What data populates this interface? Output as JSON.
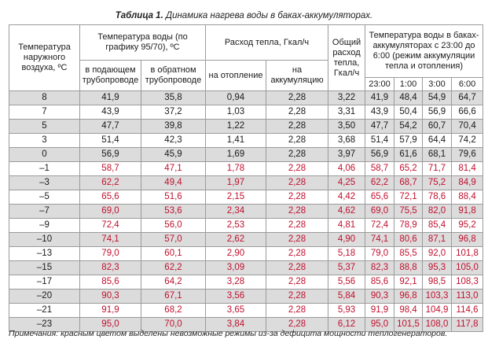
{
  "title": {
    "bold": "Таблица 1.",
    "rest": " Динамика нагрева воды в баках-аккумуляторах."
  },
  "colors": {
    "impossible_regime": "#c0102e",
    "row_shade": "#dcdcdc",
    "border": "#9b9b9b"
  },
  "headers": {
    "outdoor_temp": "Температура наружного воздуха, ºС",
    "water_temp": "Температура воды (по графику 95/70), ºС",
    "supply": "в подающем трубопроводе",
    "return": "в обратном трубопроводе",
    "heat_flow": "Расход тепла, Гкал/ч",
    "heating": "на отопление",
    "accumulation": "на аккумуляцию",
    "total": "Общий расход тепла, Гкал/ч",
    "tank_temp": "Температура воды в баках-аккумуляторах с 23:00 до 6:00 (режим аккумуляции тепла и отопления)",
    "times": [
      "23:00",
      "1:00",
      "3:00",
      "6:00"
    ]
  },
  "rows": [
    {
      "t": "8",
      "supply": "41,9",
      "return": "35,8",
      "heating": "0,94",
      "accum": "2,28",
      "total": "3,22",
      "tanks": [
        "41,9",
        "48,4",
        "54,9",
        "64,7"
      ],
      "bad": false
    },
    {
      "t": "7",
      "supply": "43,9",
      "return": "37,2",
      "heating": "1,03",
      "accum": "2,28",
      "total": "3,31",
      "tanks": [
        "43,9",
        "50,4",
        "56,9",
        "66,6"
      ],
      "bad": false
    },
    {
      "t": "5",
      "supply": "47,7",
      "return": "39,8",
      "heating": "1,22",
      "accum": "2,28",
      "total": "3,50",
      "tanks": [
        "47,7",
        "54,2",
        "60,7",
        "70,4"
      ],
      "bad": false
    },
    {
      "t": "3",
      "supply": "51,4",
      "return": "42,3",
      "heating": "1,41",
      "accum": "2,28",
      "total": "3,68",
      "tanks": [
        "51,4",
        "57,9",
        "64,4",
        "74,2"
      ],
      "bad": false
    },
    {
      "t": "0",
      "supply": "56,9",
      "return": "45,9",
      "heating": "1,69",
      "accum": "2,28",
      "total": "3,97",
      "tanks": [
        "56,9",
        "61,6",
        "68,1",
        "79,6"
      ],
      "bad": false
    },
    {
      "t": "–1",
      "supply": "58,7",
      "return": "47,1",
      "heating": "1,78",
      "accum": "2,28",
      "total": "4,06",
      "tanks": [
        "58,7",
        "65,2",
        "71,7",
        "81,4"
      ],
      "bad": true
    },
    {
      "t": "–3",
      "supply": "62,2",
      "return": "49,4",
      "heating": "1,97",
      "accum": "2,28",
      "total": "4,25",
      "tanks": [
        "62,2",
        "68,7",
        "75,2",
        "84,9"
      ],
      "bad": true
    },
    {
      "t": "–5",
      "supply": "65,6",
      "return": "51,6",
      "heating": "2,15",
      "accum": "2,28",
      "total": "4,42",
      "tanks": [
        "65,6",
        "72,1",
        "78,6",
        "88,4"
      ],
      "bad": true
    },
    {
      "t": "–7",
      "supply": "69,0",
      "return": "53,6",
      "heating": "2,34",
      "accum": "2,28",
      "total": "4,62",
      "tanks": [
        "69,0",
        "75,5",
        "82,0",
        "91,8"
      ],
      "bad": true
    },
    {
      "t": "–9",
      "supply": "72,4",
      "return": "56,0",
      "heating": "2,53",
      "accum": "2,28",
      "total": "4,81",
      "tanks": [
        "72,4",
        "78,9",
        "85,4",
        "95,2"
      ],
      "bad": true
    },
    {
      "t": "–10",
      "supply": "74,1",
      "return": "57,0",
      "heating": "2,62",
      "accum": "2,28",
      "total": "4,90",
      "tanks": [
        "74,1",
        "80,6",
        "87,1",
        "96,8"
      ],
      "bad": true
    },
    {
      "t": "–13",
      "supply": "79,0",
      "return": "60,1",
      "heating": "2,90",
      "accum": "2,28",
      "total": "5,18",
      "tanks": [
        "79,0",
        "85,5",
        "92,0",
        "101,8"
      ],
      "bad": true
    },
    {
      "t": "–15",
      "supply": "82,3",
      "return": "62,2",
      "heating": "3,09",
      "accum": "2,28",
      "total": "5,37",
      "tanks": [
        "82,3",
        "88,8",
        "95,3",
        "105,0"
      ],
      "bad": true
    },
    {
      "t": "–17",
      "supply": "85,6",
      "return": "64,2",
      "heating": "3,28",
      "accum": "2,28",
      "total": "5,56",
      "tanks": [
        "85,6",
        "92,1",
        "98,5",
        "108,3"
      ],
      "bad": true
    },
    {
      "t": "–20",
      "supply": "90,3",
      "return": "67,1",
      "heating": "3,56",
      "accum": "2,28",
      "total": "5,84",
      "tanks": [
        "90,3",
        "96,8",
        "103,3",
        "113,0"
      ],
      "bad": true
    },
    {
      "t": "–21",
      "supply": "91,9",
      "return": "68,2",
      "heating": "3,65",
      "accum": "2,28",
      "total": "5,93",
      "tanks": [
        "91,9",
        "98,4",
        "104,9",
        "114,6"
      ],
      "bad": true
    },
    {
      "t": "–23",
      "supply": "95,0",
      "return": "70,0",
      "heating": "3,84",
      "accum": "2,28",
      "total": "6,12",
      "tanks": [
        "95,0",
        "101,5",
        "108,0",
        "117,8"
      ],
      "bad": true
    }
  ],
  "note": "Примечания: красным цветом выделены невозможные режимы из-за дефицита мощности теплогенераторов."
}
